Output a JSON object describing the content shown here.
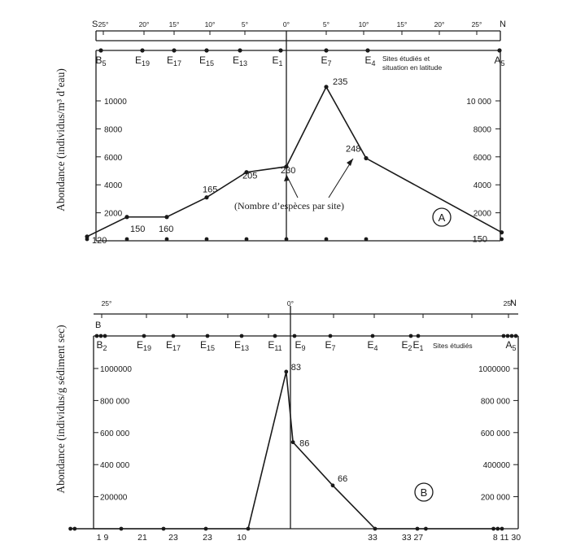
{
  "chart_data": [
    {
      "type": "line",
      "panel_label": "A",
      "ylabel": "Abondance (individus/m³ d’eau)",
      "annotation": "(Nombre d’espèces par site)",
      "ylim": [
        0,
        12000
      ],
      "yticks_left": [
        "2000",
        "4000",
        "6000",
        "8000",
        "10000"
      ],
      "yticks_right": [
        "2000",
        "4000",
        "6000",
        "8000",
        "10 000"
      ],
      "latitude_axis": {
        "left_label": "S",
        "right_label": "N",
        "ticks": [
          "25°",
          "20°",
          "15°",
          "10°",
          "5°",
          "0°",
          "5°",
          "10°",
          "15°",
          "20°",
          "25°"
        ]
      },
      "sites_caption": [
        "Sites étudiés et",
        "situation en latitude"
      ],
      "sites": [
        "B5",
        "E19",
        "E17",
        "E15",
        "E13",
        "E1",
        "E7",
        "E4",
        "A5"
      ],
      "x": [
        -25,
        -20,
        -15,
        -10,
        -5,
        0,
        5,
        10,
        27
      ],
      "values": [
        300,
        1700,
        1700,
        3100,
        4900,
        5300,
        11000,
        5900,
        600
      ],
      "species_counts": [
        "120",
        "150",
        "160",
        "165",
        "205",
        "230",
        "235",
        "248",
        "150"
      ]
    },
    {
      "type": "line",
      "panel_label": "B",
      "ylabel": "Abondance (individus/g sédiment sec)",
      "ylim": [
        0,
        1100000
      ],
      "yticks_left": [
        "200000",
        "400 000",
        "600 000",
        "800 000",
        "1000000"
      ],
      "yticks_right": [
        "200 000",
        "400000",
        "600 000",
        "800 000",
        "1000000"
      ],
      "latitude_axis": {
        "left_label": "B",
        "right_label": "N",
        "ticks": [
          "25°",
          "0°",
          "25°"
        ]
      },
      "sites_caption": [
        "Sites étudiés"
      ],
      "sites": [
        "B2",
        "E19",
        "E17",
        "E15",
        "E13",
        "E11",
        "E9",
        "E7",
        "E4",
        "E2",
        "E1",
        "A5"
      ],
      "bottom_counts": [
        "1 9",
        "21",
        "23",
        "23",
        "10",
        "33",
        "33 27",
        "8 11 30"
      ],
      "species_counts_on_curve": [
        "83",
        "86",
        "66"
      ],
      "points": [
        {
          "x": -26,
          "y": 0
        },
        {
          "x": -25.5,
          "y": 0
        },
        {
          "x": -20,
          "y": 0
        },
        {
          "x": -15,
          "y": 0
        },
        {
          "x": -10,
          "y": 0
        },
        {
          "x": -5,
          "y": 0
        },
        {
          "x": -0.5,
          "y": 980000
        },
        {
          "x": 0.3,
          "y": 540000
        },
        {
          "x": 5,
          "y": 270000
        },
        {
          "x": 10,
          "y": 0
        },
        {
          "x": 15,
          "y": 0
        },
        {
          "x": 16,
          "y": 0
        },
        {
          "x": 24,
          "y": 0
        },
        {
          "x": 24.5,
          "y": 0
        },
        {
          "x": 25,
          "y": 0
        }
      ]
    }
  ]
}
